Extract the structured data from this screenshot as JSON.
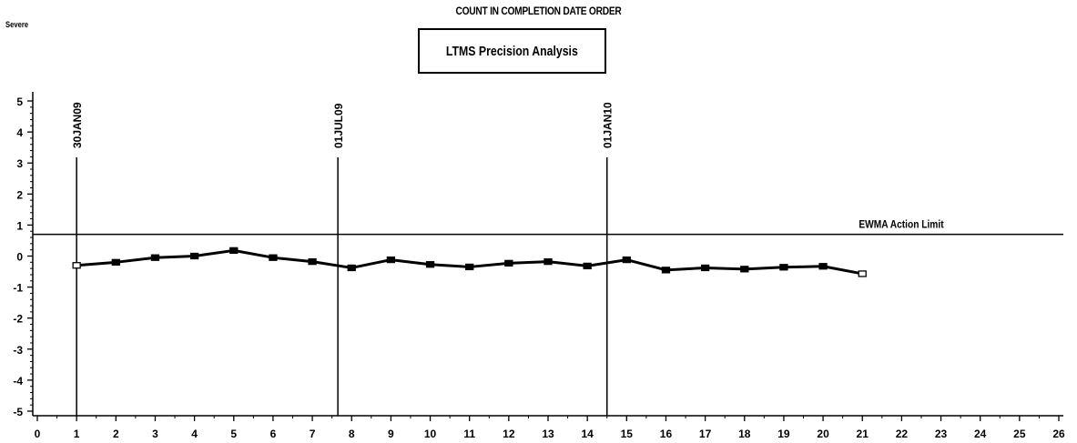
{
  "header": {
    "title": "COUNT IN COMPLETION DATE ORDER",
    "left_label": "Severe",
    "box_label": "LTMS Precision Analysis"
  },
  "chart_data": {
    "type": "line",
    "title": "COUNT IN COMPLETION DATE ORDER",
    "subtitle": "LTMS Precision Analysis",
    "xlabel": "",
    "ylabel": "",
    "xlim": [
      0,
      26
    ],
    "ylim": [
      -5,
      5
    ],
    "x_ticks": [
      0,
      1,
      2,
      3,
      4,
      5,
      6,
      7,
      8,
      9,
      10,
      11,
      12,
      13,
      14,
      15,
      16,
      17,
      18,
      19,
      20,
      21,
      22,
      23,
      24,
      25,
      26
    ],
    "y_ticks": [
      -5,
      -4,
      -3,
      -2,
      -1,
      0,
      1,
      2,
      3,
      4,
      5
    ],
    "grid": false,
    "series": [
      {
        "x": [
          1,
          2,
          3,
          4,
          5,
          6,
          7,
          8,
          9,
          10,
          11,
          12,
          13,
          14,
          15,
          16,
          17,
          18,
          19,
          20,
          21
        ],
        "values": [
          -0.3,
          -0.2,
          -0.05,
          0.0,
          0.18,
          -0.05,
          -0.18,
          -0.38,
          -0.12,
          -0.27,
          -0.35,
          -0.23,
          -0.18,
          -0.32,
          -0.12,
          -0.45,
          -0.38,
          -0.42,
          -0.36,
          -0.33,
          -0.57
        ],
        "color": "#000000"
      }
    ],
    "reference_lines": [
      {
        "orientation": "horizontal",
        "value": 0.7,
        "label": "EWMA Action Limit"
      }
    ],
    "date_markers": [
      {
        "x": 1,
        "label": "30JAN09"
      },
      {
        "x": 7.65,
        "label": "01JUL09"
      },
      {
        "x": 14.5,
        "label": "01JAN10"
      }
    ]
  }
}
